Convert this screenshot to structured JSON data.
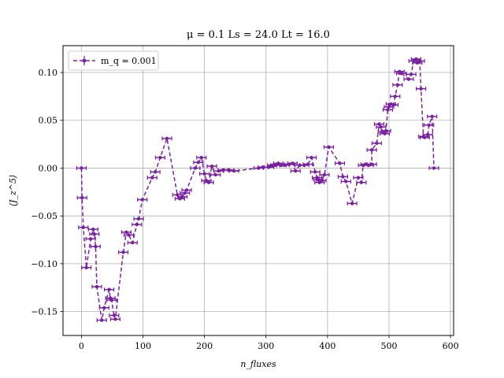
{
  "chart_data": {
    "type": "scatter",
    "title": "μ = 0.1 Ls = 24.0 Lt = 16.0",
    "xlabel": "n_fluxes",
    "ylabel": "⟨J_z^5⟩",
    "xlim": [
      -30,
      605
    ],
    "ylim": [
      -0.175,
      0.128
    ],
    "x_ticks": [
      0,
      100,
      200,
      300,
      400,
      500,
      600
    ],
    "y_ticks": [
      -0.15,
      -0.1,
      -0.05,
      0.0,
      0.05,
      0.1
    ],
    "x_tick_labels": [
      "0",
      "100",
      "200",
      "300",
      "400",
      "500",
      "600"
    ],
    "y_tick_labels": [
      "−0.15",
      "−0.10",
      "−0.05",
      "0.00",
      "0.05",
      "0.10"
    ],
    "grid": true,
    "legend_position": "top-left",
    "color": "#7b1fa2",
    "series": [
      {
        "name": "m_q = 0.001",
        "style": "dashed line with error bars and dot markers",
        "points": [
          [
            0,
            0.0
          ],
          [
            1,
            -0.031
          ],
          [
            3,
            -0.062
          ],
          [
            8,
            -0.104
          ],
          [
            15,
            -0.074
          ],
          [
            19,
            -0.064
          ],
          [
            21,
            -0.069
          ],
          [
            23,
            -0.082
          ],
          [
            25,
            -0.124
          ],
          [
            33,
            -0.159
          ],
          [
            37,
            -0.146
          ],
          [
            45,
            -0.127
          ],
          [
            47,
            -0.136
          ],
          [
            49,
            -0.138
          ],
          [
            53,
            -0.154
          ],
          [
            55,
            -0.158
          ],
          [
            68,
            -0.088
          ],
          [
            73,
            -0.067
          ],
          [
            77,
            -0.07
          ],
          [
            83,
            -0.078
          ],
          [
            90,
            -0.059
          ],
          [
            93,
            -0.053
          ],
          [
            99,
            -0.033
          ],
          [
            115,
            -0.01
          ],
          [
            120,
            -0.004
          ],
          [
            128,
            0.011
          ],
          [
            139,
            0.031
          ],
          [
            156,
            -0.028
          ],
          [
            160,
            -0.032
          ],
          [
            164,
            -0.03
          ],
          [
            168,
            -0.026
          ],
          [
            171,
            -0.023
          ],
          [
            185,
            0.0
          ],
          [
            190,
            0.006
          ],
          [
            195,
            0.011
          ],
          [
            200,
            -0.006
          ],
          [
            203,
            -0.013
          ],
          [
            207,
            -0.015
          ],
          [
            212,
            0.002
          ],
          [
            218,
            -0.007
          ],
          [
            223,
            -0.003
          ],
          [
            230,
            -0.002
          ],
          [
            240,
            -0.002
          ],
          [
            248,
            -0.003
          ],
          [
            288,
            0.0
          ],
          [
            295,
            0.001
          ],
          [
            305,
            0.001
          ],
          [
            310,
            0.003
          ],
          [
            315,
            0.003
          ],
          [
            320,
            0.005
          ],
          [
            325,
            0.003
          ],
          [
            330,
            0.003
          ],
          [
            338,
            0.004
          ],
          [
            343,
            0.005
          ],
          [
            348,
            -0.003
          ],
          [
            355,
            0.003
          ],
          [
            362,
            0.003
          ],
          [
            368,
            0.004
          ],
          [
            374,
            0.011
          ],
          [
            380,
            -0.004
          ],
          [
            383,
            -0.01
          ],
          [
            385,
            -0.012
          ],
          [
            387,
            -0.015
          ],
          [
            390,
            -0.013
          ],
          [
            395,
            -0.007
          ],
          [
            402,
            0.022
          ],
          [
            420,
            0.005
          ],
          [
            425,
            -0.009
          ],
          [
            430,
            -0.014
          ],
          [
            440,
            -0.037
          ],
          [
            450,
            -0.01
          ],
          [
            455,
            -0.015
          ],
          [
            458,
            0.003
          ],
          [
            462,
            0.004
          ],
          [
            467,
            0.003
          ],
          [
            472,
            0.004
          ],
          [
            472,
            0.019
          ],
          [
            480,
            0.026
          ],
          [
            484,
            0.046
          ],
          [
            487,
            0.043
          ],
          [
            490,
            0.038
          ],
          [
            493,
            0.036
          ],
          [
            495,
            0.039
          ],
          [
            498,
            0.061
          ],
          [
            500,
            0.064
          ],
          [
            503,
            0.067
          ],
          [
            507,
            0.066
          ],
          [
            510,
            0.075
          ],
          [
            514,
            0.087
          ],
          [
            517,
            0.101
          ],
          [
            520,
            0.099
          ],
          [
            532,
            0.093
          ],
          [
            536,
            0.098
          ],
          [
            540,
            0.112
          ],
          [
            544,
            0.114
          ],
          [
            546,
            0.11
          ],
          [
            550,
            0.112
          ],
          [
            552,
            0.083
          ],
          [
            556,
            0.033
          ],
          [
            558,
            0.032
          ],
          [
            563,
            0.035
          ],
          [
            565,
            0.045
          ],
          [
            570,
            0.054
          ],
          [
            573,
            0.0
          ]
        ]
      }
    ]
  }
}
